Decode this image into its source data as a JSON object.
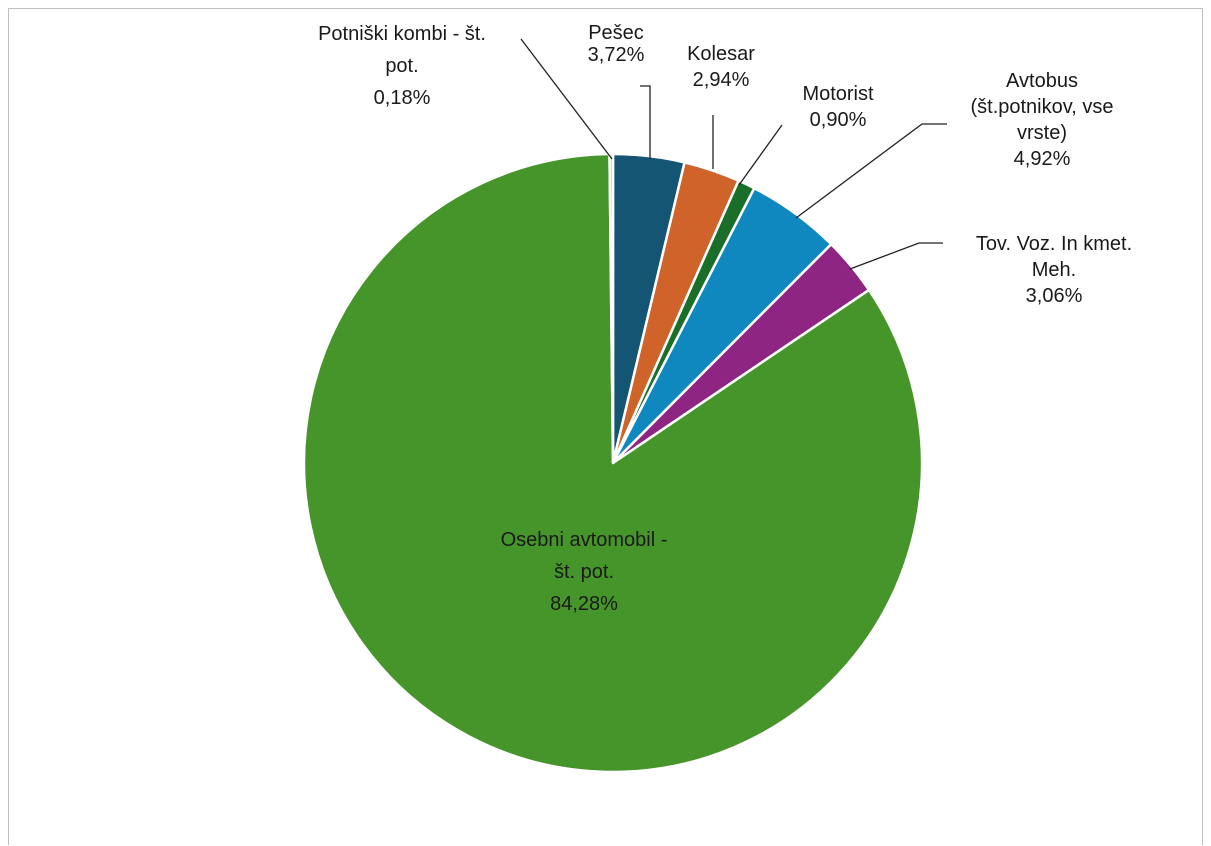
{
  "chart_data": {
    "type": "pie",
    "title": "",
    "legend": "none",
    "slices": [
      {
        "label_lines": [
          "Pešec",
          "3,72%"
        ],
        "value": 3.72,
        "color": "#145573"
      },
      {
        "label_lines": [
          "Kolesar",
          "2,94%"
        ],
        "value": 2.94,
        "color": "#D0632A"
      },
      {
        "label_lines": [
          "Motorist",
          "0,90%"
        ],
        "value": 0.9,
        "color": "#1B6E2A"
      },
      {
        "label_lines": [
          "Avtobus",
          "(št.potnikov, vse",
          "vrste)",
          "4,92%"
        ],
        "value": 4.92,
        "color": "#0F88C0"
      },
      {
        "label_lines": [
          "Tov. Voz. In kmet.",
          "Meh.",
          "3,06%"
        ],
        "value": 3.06,
        "color": "#8E2582"
      },
      {
        "label_lines": [
          "Osebni avtomobil -",
          "št. pot.",
          "84,28%"
        ],
        "value": 84.28,
        "color": "#46952A"
      },
      {
        "label_lines": [
          "Potniški kombi - št.",
          "pot.",
          "0,18%"
        ],
        "value": 0.18,
        "color": "#B5D9A8"
      }
    ]
  }
}
